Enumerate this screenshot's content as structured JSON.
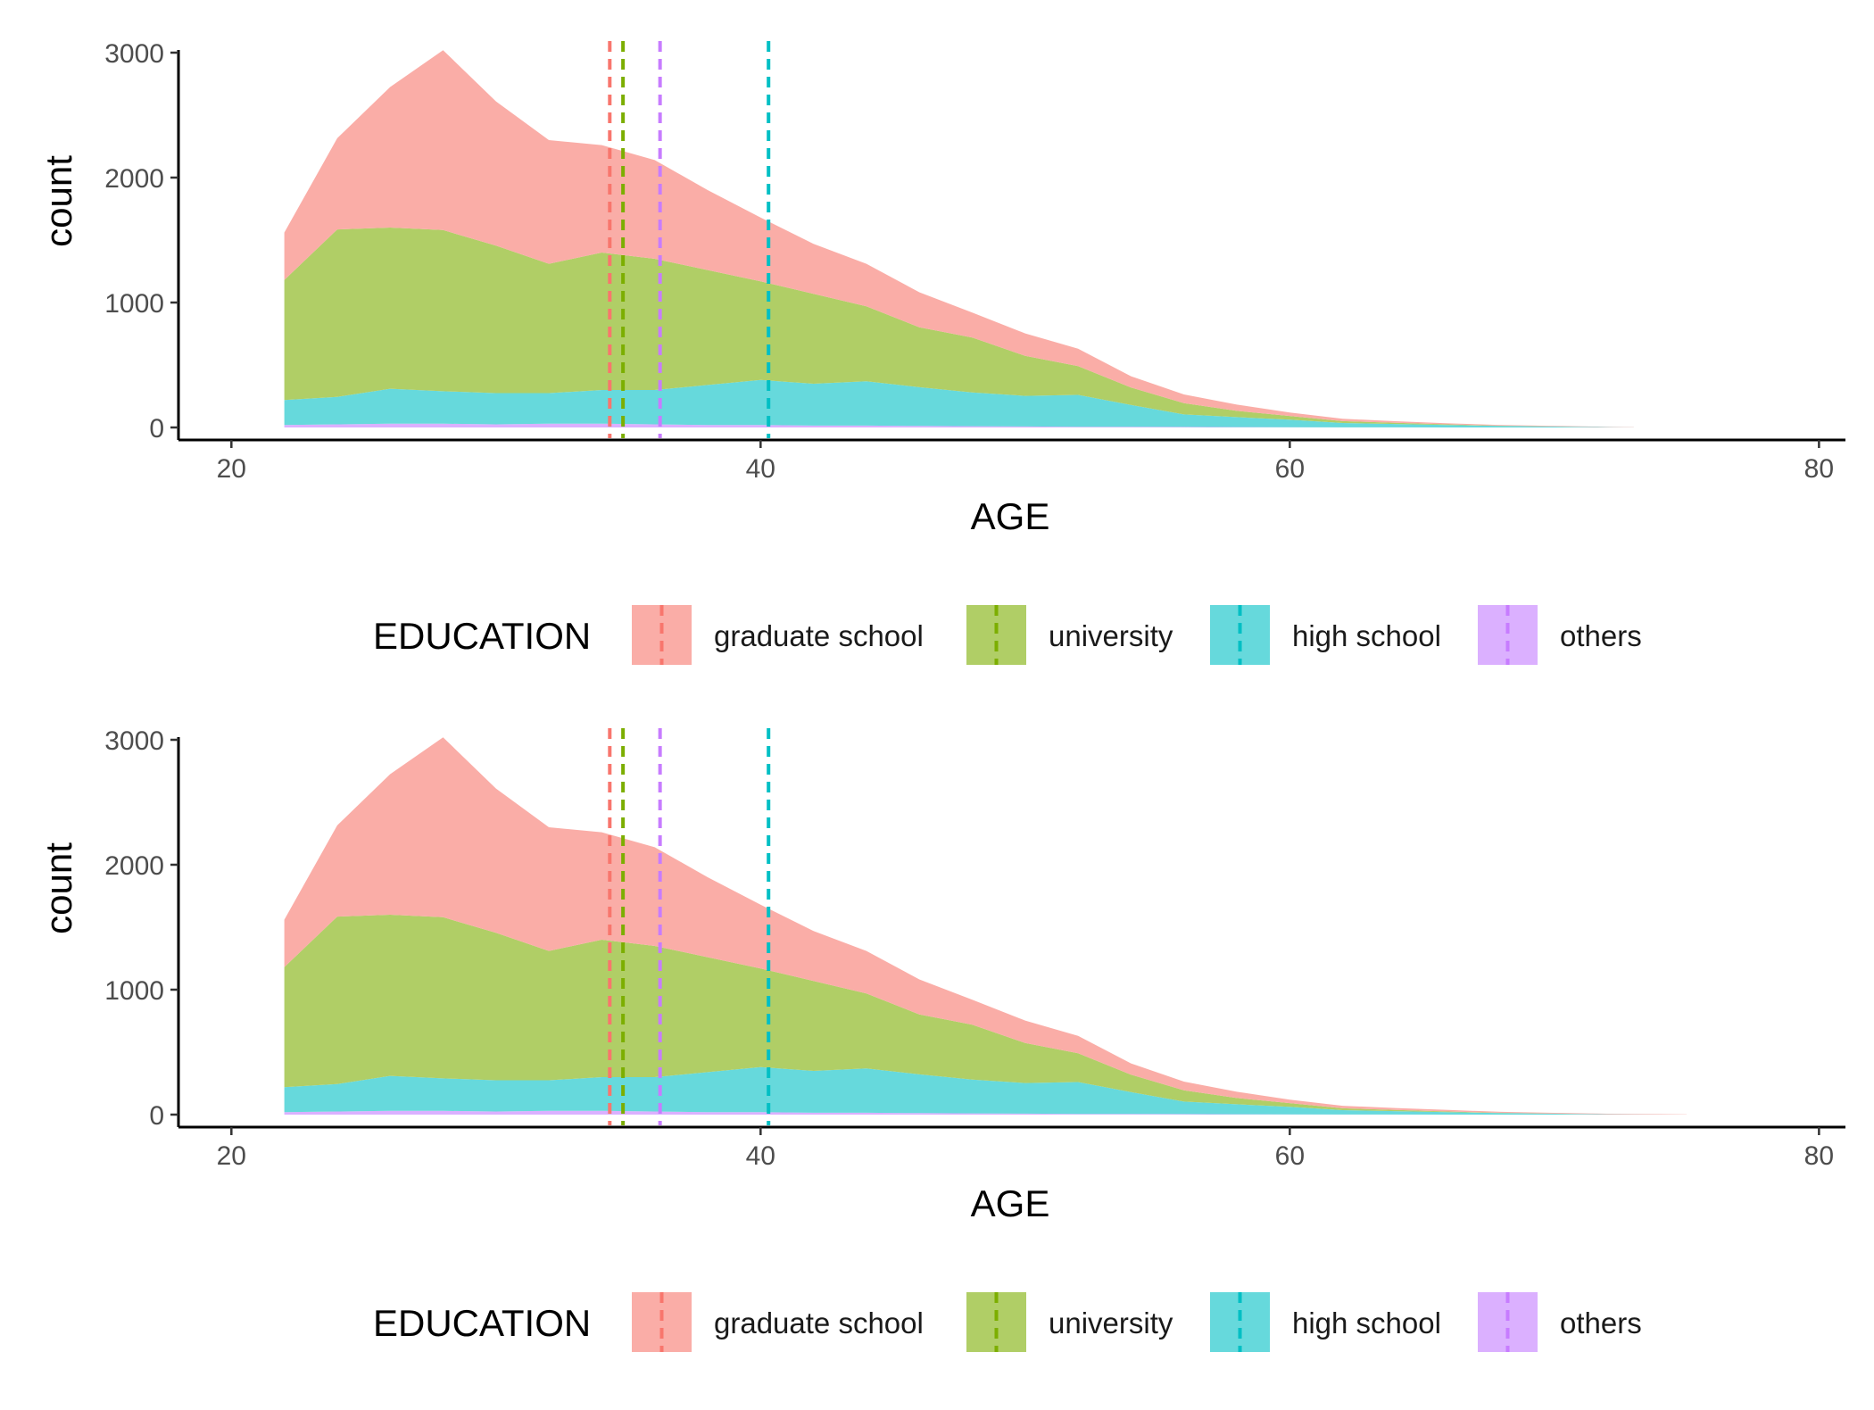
{
  "chart_data": [
    {
      "type": "area",
      "stacked": true,
      "title": "",
      "xlabel": "AGE",
      "ylabel": "count",
      "xlim": [
        18,
        81
      ],
      "ylim": [
        -100,
        3150
      ],
      "xticks": [
        20,
        40,
        60,
        80
      ],
      "yticks": [
        0,
        1000,
        2000,
        3000
      ],
      "grid": false,
      "legend": {
        "title": "EDUCATION",
        "position": "bottom"
      },
      "x": [
        22,
        24,
        26,
        28,
        30,
        32,
        34,
        36,
        38,
        40,
        42,
        44,
        46,
        48,
        50,
        52,
        54,
        56,
        58,
        60,
        62,
        64,
        66,
        68,
        70,
        72,
        73
      ],
      "series": [
        {
          "name": "others",
          "color": "#C77CFF",
          "fill": "#DBB0FF",
          "mean": 36.2,
          "values": [
            20,
            25,
            30,
            30,
            25,
            30,
            30,
            25,
            20,
            20,
            15,
            15,
            12,
            10,
            8,
            6,
            5,
            4,
            3,
            2,
            1,
            1,
            0,
            0,
            0,
            0,
            0
          ]
        },
        {
          "name": "high school",
          "color": "#00BFC4",
          "fill": "#66D9DC",
          "mean": 40.3,
          "values": [
            200,
            220,
            280,
            260,
            250,
            245,
            270,
            275,
            320,
            360,
            335,
            355,
            310,
            270,
            245,
            255,
            175,
            100,
            80,
            60,
            35,
            27,
            20,
            12,
            7,
            3,
            1
          ]
        },
        {
          "name": "university",
          "color": "#7CAE00",
          "fill": "#B0CE66",
          "mean": 34.8,
          "values": [
            960,
            1340,
            1290,
            1290,
            1180,
            1035,
            1100,
            1050,
            920,
            790,
            720,
            600,
            480,
            440,
            320,
            230,
            140,
            90,
            50,
            30,
            15,
            10,
            5,
            2,
            1,
            0,
            0
          ]
        },
        {
          "name": "graduate school",
          "color": "#F8766D",
          "fill": "#FAADA7",
          "mean": 34.3,
          "values": [
            380,
            730,
            1125,
            1440,
            1155,
            990,
            860,
            790,
            640,
            510,
            400,
            340,
            280,
            200,
            180,
            140,
            90,
            70,
            50,
            28,
            18,
            12,
            8,
            6,
            4,
            3,
            2
          ]
        }
      ]
    },
    {
      "type": "area",
      "stacked": true,
      "title": "",
      "xlabel": "AGE",
      "ylabel": "count",
      "xlim": [
        18,
        81
      ],
      "ylim": [
        -100,
        3150
      ],
      "xticks": [
        20,
        40,
        60,
        80
      ],
      "yticks": [
        0,
        1000,
        2000,
        3000
      ],
      "grid": false,
      "legend": {
        "title": "EDUCATION",
        "position": "bottom"
      },
      "x": [
        22,
        24,
        26,
        28,
        30,
        32,
        34,
        36,
        38,
        40,
        42,
        44,
        46,
        48,
        50,
        52,
        54,
        56,
        58,
        60,
        62,
        64,
        66,
        68,
        70,
        72,
        74,
        75
      ],
      "series": [
        {
          "name": "others",
          "color": "#C77CFF",
          "fill": "#DBB0FF",
          "mean": 36.2,
          "values": [
            20,
            25,
            30,
            30,
            25,
            30,
            30,
            25,
            20,
            20,
            15,
            15,
            12,
            10,
            8,
            6,
            5,
            4,
            3,
            2,
            1,
            1,
            0,
            0,
            0,
            0,
            0,
            0
          ]
        },
        {
          "name": "high school",
          "color": "#00BFC4",
          "fill": "#66D9DC",
          "mean": 40.3,
          "values": [
            200,
            220,
            280,
            260,
            250,
            245,
            270,
            275,
            320,
            360,
            335,
            355,
            310,
            270,
            245,
            255,
            175,
            100,
            80,
            60,
            35,
            27,
            20,
            12,
            7,
            3,
            1,
            0
          ]
        },
        {
          "name": "university",
          "color": "#7CAE00",
          "fill": "#B0CE66",
          "mean": 34.8,
          "values": [
            960,
            1340,
            1290,
            1290,
            1180,
            1035,
            1100,
            1050,
            920,
            790,
            720,
            600,
            480,
            440,
            320,
            230,
            140,
            90,
            50,
            30,
            15,
            10,
            5,
            2,
            1,
            0,
            0,
            0
          ]
        },
        {
          "name": "graduate school",
          "color": "#F8766D",
          "fill": "#FAADA7",
          "mean": 34.3,
          "values": [
            380,
            730,
            1125,
            1440,
            1155,
            990,
            860,
            790,
            640,
            510,
            400,
            340,
            280,
            200,
            180,
            140,
            90,
            70,
            50,
            28,
            20,
            15,
            12,
            8,
            6,
            4,
            3,
            2
          ]
        }
      ]
    }
  ],
  "legend_items": [
    {
      "label": "graduate school",
      "color": "#F8766D",
      "fill": "#FAADA7"
    },
    {
      "label": "university",
      "color": "#7CAE00",
      "fill": "#B0CE66"
    },
    {
      "label": "high school",
      "color": "#00BFC4",
      "fill": "#66D9DC"
    },
    {
      "label": "others",
      "color": "#C77CFF",
      "fill": "#DBB0FF"
    }
  ]
}
